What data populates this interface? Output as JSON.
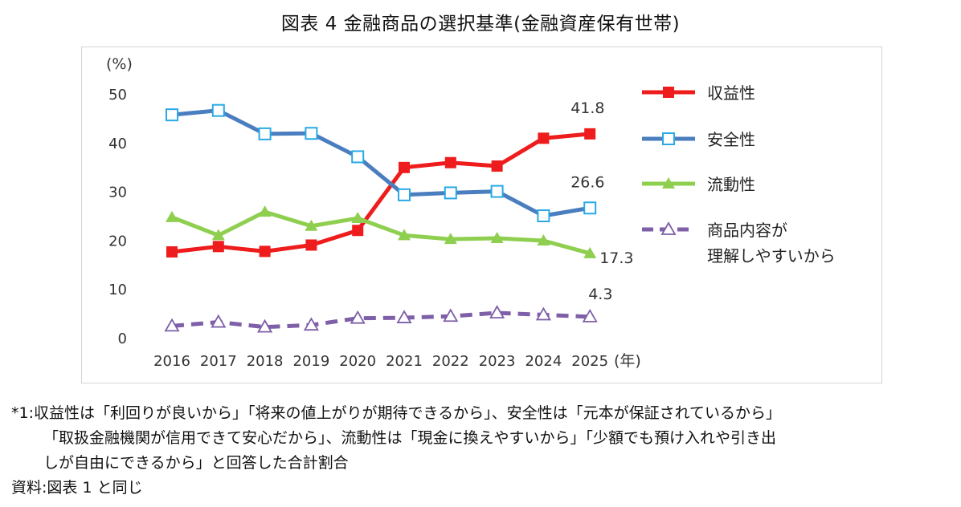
{
  "title": "図表 4  金融商品の選択基準(金融資産保有世帯)",
  "chart_data": {
    "type": "line",
    "title": "図表 4  金融商品の選択基準(金融資産保有世帯)",
    "ylabel": "(%)",
    "xlabel": "(年)",
    "ylim": [
      0,
      50
    ],
    "yticks": [
      0,
      10,
      20,
      30,
      40,
      50
    ],
    "categories": [
      "2016",
      "2017",
      "2018",
      "2019",
      "2020",
      "2021",
      "2022",
      "2023",
      "2024",
      "2025"
    ],
    "grid": false,
    "legend_position": "right",
    "series": [
      {
        "name": "収益性",
        "color": "#ee1c1c",
        "marker": "square-filled",
        "dashed": false,
        "values": [
          17.6,
          18.7,
          17.7,
          19.0,
          22.0,
          34.9,
          35.9,
          35.2,
          40.9,
          41.8
        ],
        "end_label": "41.8",
        "legend_lines": [
          "収益性"
        ]
      },
      {
        "name": "安全性",
        "color": "#4a7ebf",
        "marker": "square-open",
        "dashed": false,
        "values": [
          45.7,
          46.6,
          41.8,
          41.9,
          37.1,
          29.3,
          29.7,
          30.0,
          25.0,
          26.6
        ],
        "end_label": "26.6",
        "legend_lines": [
          "安全性"
        ]
      },
      {
        "name": "流動性",
        "color": "#8fcf4f",
        "marker": "triangle-filled",
        "dashed": false,
        "values": [
          24.7,
          21.0,
          25.8,
          22.9,
          24.5,
          21.0,
          20.2,
          20.4,
          19.9,
          17.3
        ],
        "end_label": "17.3",
        "legend_lines": [
          "流動性"
        ]
      },
      {
        "name": "商品内容が理解しやすいから",
        "color": "#7e5fa8",
        "marker": "triangle-open",
        "dashed": true,
        "values": [
          2.4,
          3.2,
          2.2,
          2.6,
          4.0,
          4.1,
          4.4,
          5.1,
          4.7,
          4.3
        ],
        "end_label": "4.3",
        "legend_lines": [
          "商品内容が",
          "理解しやすいから"
        ]
      }
    ]
  },
  "notes": {
    "line1": "*1:収益性は「利回りが良いから」「将来の値上がりが期待できるから」、安全性は「元本が保証されているから」",
    "line2": "「取扱金融機関が信用できて安心だから」、流動性は「現金に換えやすいから」「少額でも預け入れや引き出",
    "line3": "しが自由にできるから」と回答した合計割合",
    "source": "資料:図表 1 と同じ"
  }
}
